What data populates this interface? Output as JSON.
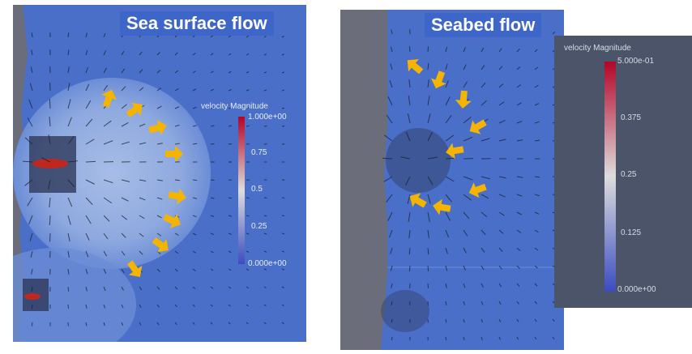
{
  "panels": {
    "left": {
      "title": "Sea surface flow",
      "legend": {
        "title": "velocity Magnitude",
        "ticks": [
          "1.000e+00",
          "0.75",
          "0.5",
          "0.25",
          "0.000e+00"
        ],
        "range": [
          0,
          1
        ]
      }
    },
    "right": {
      "title": "Seabed flow",
      "legend": {
        "title": "velocity Magnitude",
        "ticks": [
          "5.000e-01",
          "0.375",
          "0.25",
          "0.125",
          "0.000e+00"
        ],
        "range": [
          0,
          0.5
        ]
      }
    }
  },
  "colors": {
    "field_blue": "#4a6fc9",
    "wall_gray": "#6b6e7a",
    "arrow_yellow": "#f5b400",
    "legend_bg": "#4b5468",
    "colormap_low": "#3b4cc0",
    "colormap_mid": "#dddddd",
    "colormap_high": "#b40426"
  }
}
